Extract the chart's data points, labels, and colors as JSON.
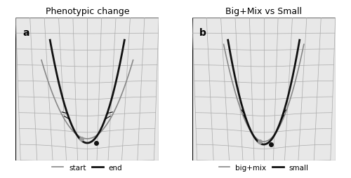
{
  "title_left": "Phenotypic change",
  "title_right": "Big+Mix vs Small",
  "label_a": "a",
  "label_b": "b",
  "legend_left": [
    "start",
    "end"
  ],
  "legend_right": [
    "big+mix",
    "small"
  ],
  "bg_color": "#f0f0f0",
  "grid_color": "#aaaaaa",
  "curve_gray": "#888888",
  "curve_black": "#111111",
  "dot_gray": "#999999",
  "dot_black": "#111111",
  "title_fontsize": 9,
  "label_fontsize": 10
}
